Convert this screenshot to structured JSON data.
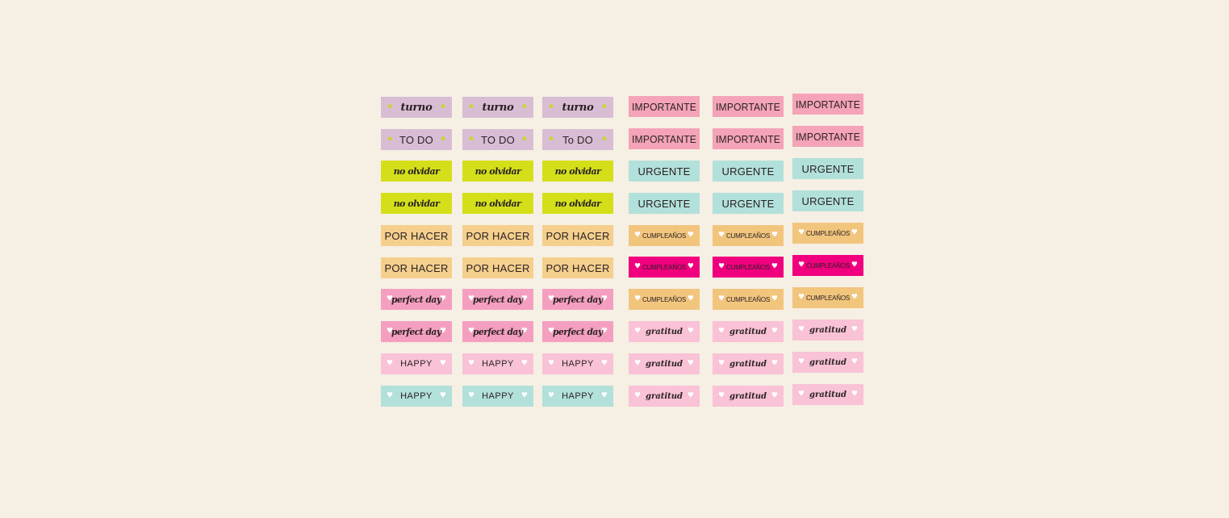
{
  "colors": {
    "background": "#f6efe4",
    "lavender": "#d9bdd4",
    "lime": "#d4df1a",
    "peach": "#f5cf8c",
    "orange": "#f2c57d",
    "rose": "#f4a3b8",
    "pink_light": "#f9c2d6",
    "pink_mid": "#f49fc1",
    "mint": "#b2e0da",
    "magenta": "#f0007e",
    "star_color": "#c8dc00",
    "heart_color": "#ffffff"
  },
  "stickers": {
    "turno": "turno",
    "to_do_caps": "TO DO",
    "to_do_title": "To DO",
    "no_olvidar": "no olvidar",
    "por_hacer": "POR HACER",
    "perfect_day": "perfect day",
    "happy": "HAPPY",
    "importante": "IMPORTANTE",
    "urgente": "URGENTE",
    "cumpleanos": "CUMPLEAÑOS",
    "gratitud": "gratitud"
  },
  "icons": {
    "star": "★",
    "heart": "♥"
  }
}
